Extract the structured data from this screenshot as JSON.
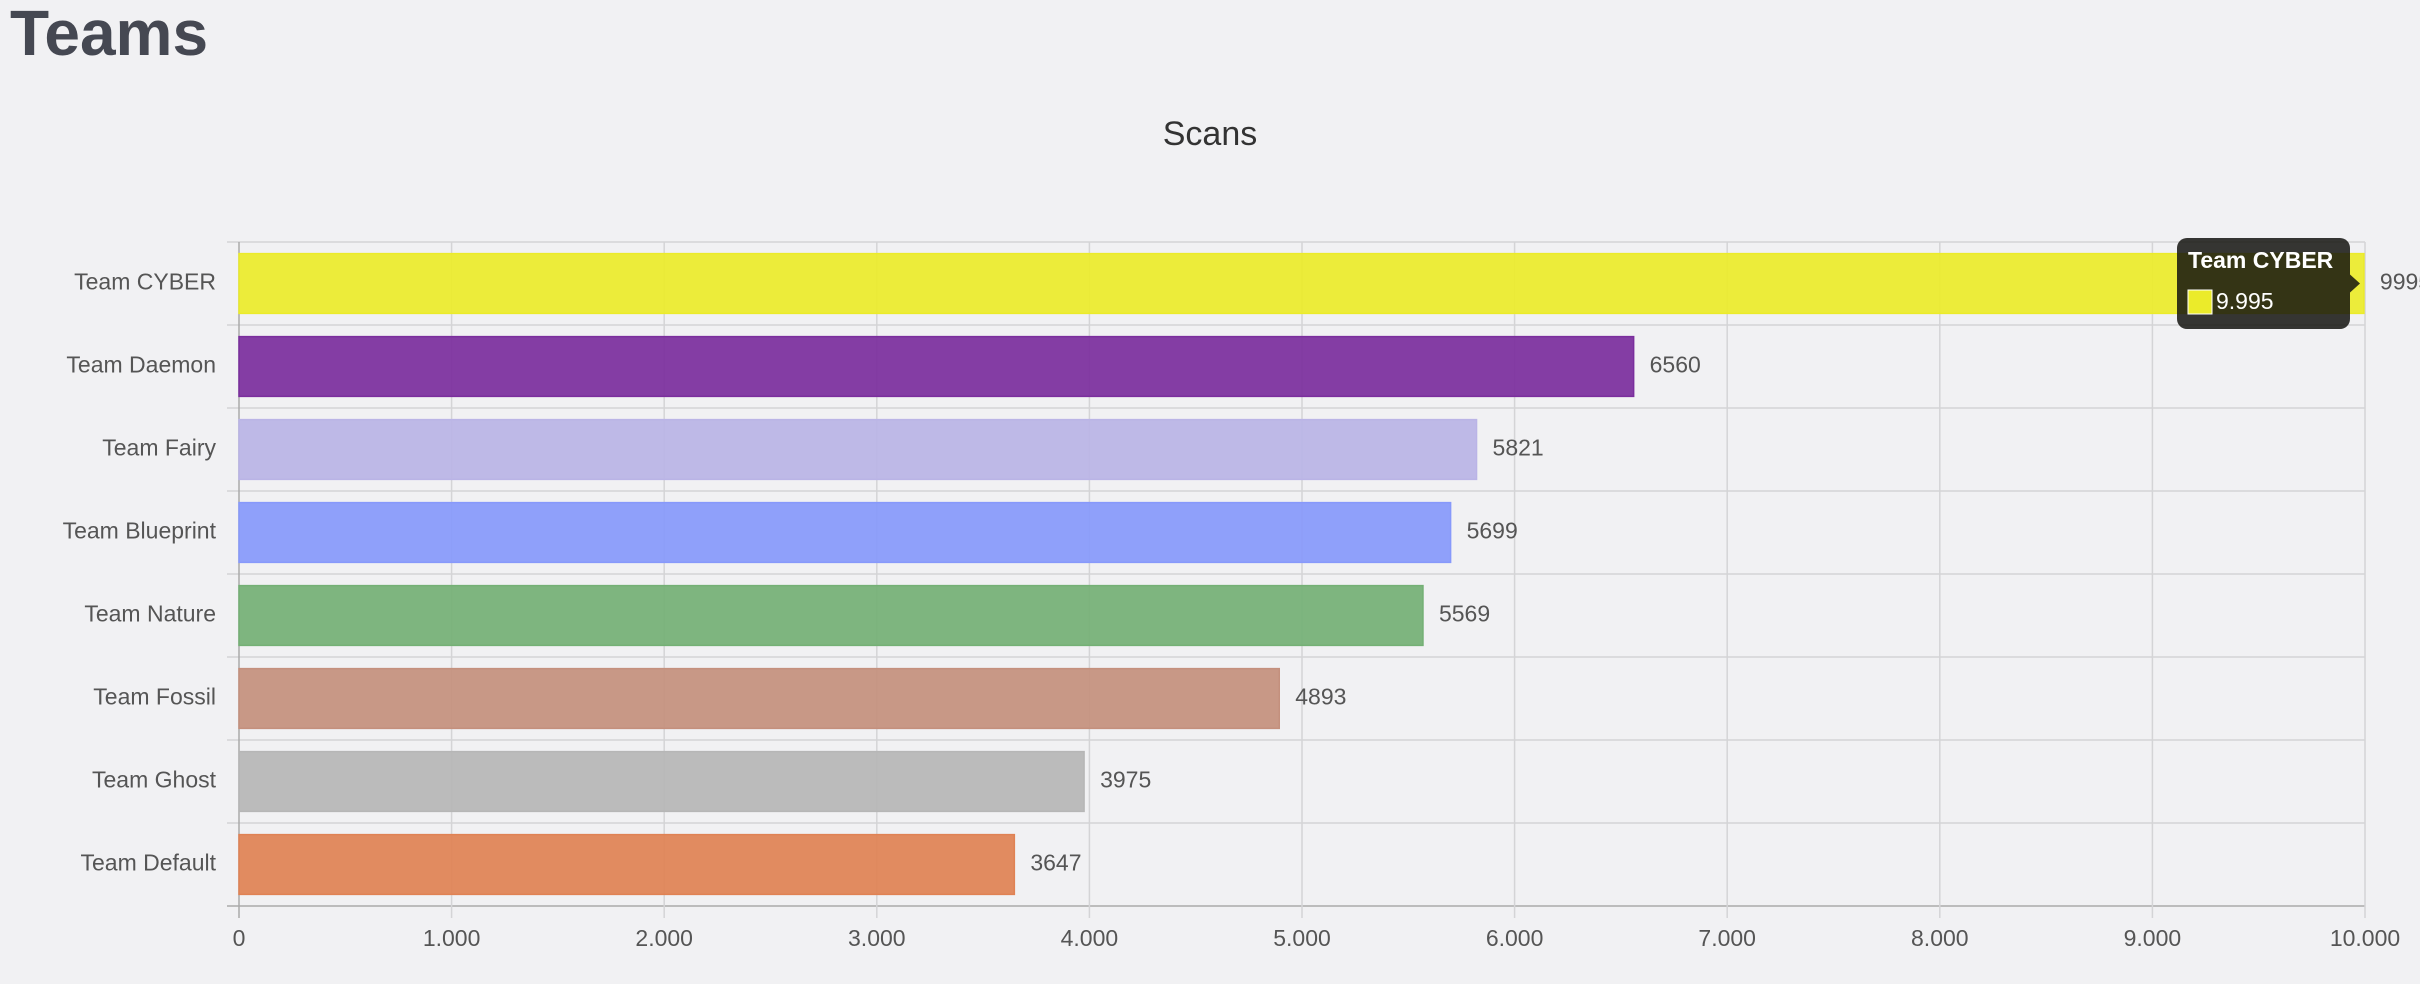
{
  "page": {
    "heading": "Teams"
  },
  "chart_data": {
    "type": "bar",
    "orientation": "horizontal",
    "title": "Scans",
    "categories": [
      "Team CYBER",
      "Team Daemon",
      "Team Fairy",
      "Team Blueprint",
      "Team Nature",
      "Team Fossil",
      "Team Ghost",
      "Team Default"
    ],
    "values": [
      9995,
      6560,
      5821,
      5699,
      5569,
      4893,
      3975,
      3647
    ],
    "colors": [
      "#ebeb2a",
      "#7b2e9d",
      "#bab4e6",
      "#8799fb",
      "#74b075",
      "#c4907d",
      "#b6b6b6",
      "#e08254"
    ],
    "xlim": [
      0,
      10000
    ],
    "xticks": [
      0,
      {
        "value": 1000,
        "label": "1.000"
      },
      {
        "value": 2000,
        "label": "2.000"
      },
      {
        "value": 3000,
        "label": "3.000"
      },
      {
        "value": 4000,
        "label": "4.000"
      },
      {
        "value": 5000,
        "label": "5.000"
      },
      {
        "value": 6000,
        "label": "6.000"
      },
      {
        "value": 7000,
        "label": "7.000"
      },
      {
        "value": 8000,
        "label": "8.000"
      },
      {
        "value": 9000,
        "label": "9.000"
      },
      {
        "value": 10000,
        "label": "10.000"
      }
    ],
    "grid": true,
    "tooltip": {
      "category": "Team CYBER",
      "value": 9995,
      "label": "9.995"
    }
  }
}
